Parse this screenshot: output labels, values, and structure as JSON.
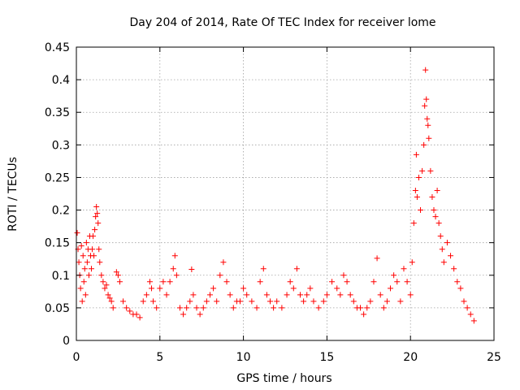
{
  "chart_data": {
    "type": "scatter",
    "title": "Day 204 of 2014, Rate Of TEC Index for receiver lome",
    "xlabel": "GPS time / hours",
    "ylabel": "ROTI / TECUs",
    "xlim": [
      0,
      25
    ],
    "ylim": [
      0,
      0.45
    ],
    "xticks": [
      0,
      5,
      10,
      15,
      20,
      25
    ],
    "yticks": [
      0,
      0.05,
      0.1,
      0.15,
      0.2,
      0.25,
      0.3,
      0.35,
      0.4,
      0.45
    ],
    "xtick_labels": [
      "0",
      "5",
      "10",
      "15",
      "20",
      "25"
    ],
    "ytick_labels": [
      "0",
      "0.05",
      "0.1",
      "0.15",
      "0.2",
      "0.25",
      "0.3",
      "0.35",
      "0.4",
      "0.45"
    ],
    "grid": true,
    "marker": "plus",
    "color": "#ff0000",
    "points": [
      [
        0.05,
        0.165
      ],
      [
        0.1,
        0.14
      ],
      [
        0.15,
        0.12
      ],
      [
        0.2,
        0.1
      ],
      [
        0.25,
        0.08
      ],
      [
        0.3,
        0.145
      ],
      [
        0.35,
        0.06
      ],
      [
        0.4,
        0.13
      ],
      [
        0.45,
        0.09
      ],
      [
        0.5,
        0.11
      ],
      [
        0.55,
        0.07
      ],
      [
        0.6,
        0.15
      ],
      [
        0.65,
        0.12
      ],
      [
        0.7,
        0.14
      ],
      [
        0.75,
        0.1
      ],
      [
        0.8,
        0.16
      ],
      [
        0.85,
        0.13
      ],
      [
        0.9,
        0.11
      ],
      [
        0.95,
        0.14
      ],
      [
        1.0,
        0.16
      ],
      [
        1.05,
        0.13
      ],
      [
        1.1,
        0.17
      ],
      [
        1.15,
        0.19
      ],
      [
        1.2,
        0.205
      ],
      [
        1.25,
        0.195
      ],
      [
        1.3,
        0.18
      ],
      [
        1.35,
        0.14
      ],
      [
        1.4,
        0.12
      ],
      [
        1.5,
        0.1
      ],
      [
        1.6,
        0.09
      ],
      [
        1.7,
        0.08
      ],
      [
        1.8,
        0.085
      ],
      [
        1.9,
        0.07
      ],
      [
        2.0,
        0.065
      ],
      [
        2.1,
        0.06
      ],
      [
        2.2,
        0.05
      ],
      [
        2.4,
        0.105
      ],
      [
        2.5,
        0.1
      ],
      [
        2.6,
        0.09
      ],
      [
        2.8,
        0.06
      ],
      [
        3.0,
        0.05
      ],
      [
        3.2,
        0.045
      ],
      [
        3.4,
        0.04
      ],
      [
        3.6,
        0.04
      ],
      [
        3.8,
        0.035
      ],
      [
        4.0,
        0.06
      ],
      [
        4.2,
        0.07
      ],
      [
        4.4,
        0.09
      ],
      [
        4.5,
        0.08
      ],
      [
        4.6,
        0.06
      ],
      [
        4.8,
        0.05
      ],
      [
        5.0,
        0.08
      ],
      [
        5.2,
        0.09
      ],
      [
        5.4,
        0.07
      ],
      [
        5.6,
        0.09
      ],
      [
        5.8,
        0.11
      ],
      [
        5.9,
        0.13
      ],
      [
        6.0,
        0.1
      ],
      [
        6.2,
        0.05
      ],
      [
        6.4,
        0.04
      ],
      [
        6.6,
        0.05
      ],
      [
        6.8,
        0.06
      ],
      [
        6.9,
        0.109
      ],
      [
        7.0,
        0.07
      ],
      [
        7.2,
        0.05
      ],
      [
        7.4,
        0.04
      ],
      [
        7.6,
        0.05
      ],
      [
        7.8,
        0.06
      ],
      [
        8.0,
        0.07
      ],
      [
        8.2,
        0.08
      ],
      [
        8.4,
        0.06
      ],
      [
        8.6,
        0.1
      ],
      [
        8.8,
        0.12
      ],
      [
        9.0,
        0.09
      ],
      [
        9.2,
        0.07
      ],
      [
        9.4,
        0.05
      ],
      [
        9.6,
        0.06
      ],
      [
        9.8,
        0.06
      ],
      [
        10.0,
        0.08
      ],
      [
        10.2,
        0.07
      ],
      [
        10.5,
        0.06
      ],
      [
        10.8,
        0.05
      ],
      [
        11.0,
        0.09
      ],
      [
        11.2,
        0.11
      ],
      [
        11.4,
        0.07
      ],
      [
        11.6,
        0.06
      ],
      [
        11.8,
        0.05
      ],
      [
        12.0,
        0.06
      ],
      [
        12.3,
        0.05
      ],
      [
        12.6,
        0.07
      ],
      [
        12.8,
        0.09
      ],
      [
        13.0,
        0.08
      ],
      [
        13.2,
        0.11
      ],
      [
        13.4,
        0.07
      ],
      [
        13.6,
        0.06
      ],
      [
        13.8,
        0.07
      ],
      [
        14.0,
        0.08
      ],
      [
        14.2,
        0.06
      ],
      [
        14.5,
        0.05
      ],
      [
        14.8,
        0.06
      ],
      [
        15.0,
        0.07
      ],
      [
        15.3,
        0.09
      ],
      [
        15.6,
        0.08
      ],
      [
        15.8,
        0.07
      ],
      [
        16.0,
        0.1
      ],
      [
        16.2,
        0.09
      ],
      [
        16.4,
        0.07
      ],
      [
        16.6,
        0.06
      ],
      [
        16.8,
        0.05
      ],
      [
        17.0,
        0.05
      ],
      [
        17.2,
        0.04
      ],
      [
        17.4,
        0.05
      ],
      [
        17.6,
        0.06
      ],
      [
        17.8,
        0.09
      ],
      [
        18.0,
        0.126
      ],
      [
        18.2,
        0.07
      ],
      [
        18.4,
        0.05
      ],
      [
        18.6,
        0.06
      ],
      [
        18.8,
        0.08
      ],
      [
        19.0,
        0.1
      ],
      [
        19.2,
        0.09
      ],
      [
        19.4,
        0.06
      ],
      [
        19.6,
        0.11
      ],
      [
        19.8,
        0.09
      ],
      [
        20.0,
        0.07
      ],
      [
        20.1,
        0.12
      ],
      [
        20.2,
        0.18
      ],
      [
        20.3,
        0.23
      ],
      [
        20.35,
        0.285
      ],
      [
        20.4,
        0.22
      ],
      [
        20.5,
        0.25
      ],
      [
        20.6,
        0.2
      ],
      [
        20.7,
        0.26
      ],
      [
        20.8,
        0.3
      ],
      [
        20.85,
        0.36
      ],
      [
        20.9,
        0.415
      ],
      [
        20.95,
        0.37
      ],
      [
        21.0,
        0.34
      ],
      [
        21.05,
        0.33
      ],
      [
        21.1,
        0.31
      ],
      [
        21.2,
        0.26
      ],
      [
        21.3,
        0.22
      ],
      [
        21.4,
        0.2
      ],
      [
        21.5,
        0.19
      ],
      [
        21.6,
        0.23
      ],
      [
        21.7,
        0.18
      ],
      [
        21.8,
        0.16
      ],
      [
        21.9,
        0.14
      ],
      [
        22.0,
        0.12
      ],
      [
        22.2,
        0.15
      ],
      [
        22.4,
        0.13
      ],
      [
        22.6,
        0.11
      ],
      [
        22.8,
        0.09
      ],
      [
        23.0,
        0.08
      ],
      [
        23.2,
        0.06
      ],
      [
        23.4,
        0.05
      ],
      [
        23.6,
        0.04
      ],
      [
        23.8,
        0.03
      ]
    ]
  },
  "colors": {
    "series": "#ff0000",
    "grid": "#a0a0a0",
    "axis": "#000000"
  }
}
